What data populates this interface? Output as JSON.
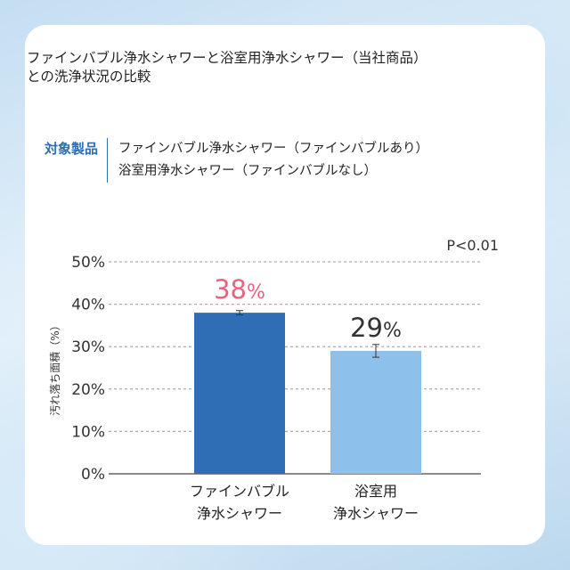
{
  "title_lines": [
    "ファインバブル浄水シャワーと浴室用浄水シャワー（当社商品）",
    "との洗浄状況の比較"
  ],
  "target": {
    "label": "対象製品",
    "products": [
      "ファインバブル浄水シャワー（ファインバブルあり）",
      "浴室用浄水シャワー（ファインバブルなし）"
    ]
  },
  "colors": {
    "bar1": "#2f6db5",
    "bar2": "#8ec0ec",
    "highlight": "#e8637f",
    "grid": "#9a9a9a"
  },
  "chart_data": {
    "type": "bar",
    "categories": [
      [
        "ファインバブル",
        "浄水シャワー"
      ],
      [
        "浴室用",
        "浄水シャワー"
      ]
    ],
    "values": [
      38,
      29
    ],
    "value_labels": [
      "38",
      "29"
    ],
    "value_unit": "%",
    "error": [
      0.5,
      1.5
    ],
    "ylabel": "汚れ落ち面積（%）",
    "yticks": [
      "0%",
      "10%",
      "20%",
      "30%",
      "40%",
      "50%"
    ],
    "ylim": [
      0,
      50
    ],
    "annotation": "P<0.01",
    "grid": true
  }
}
